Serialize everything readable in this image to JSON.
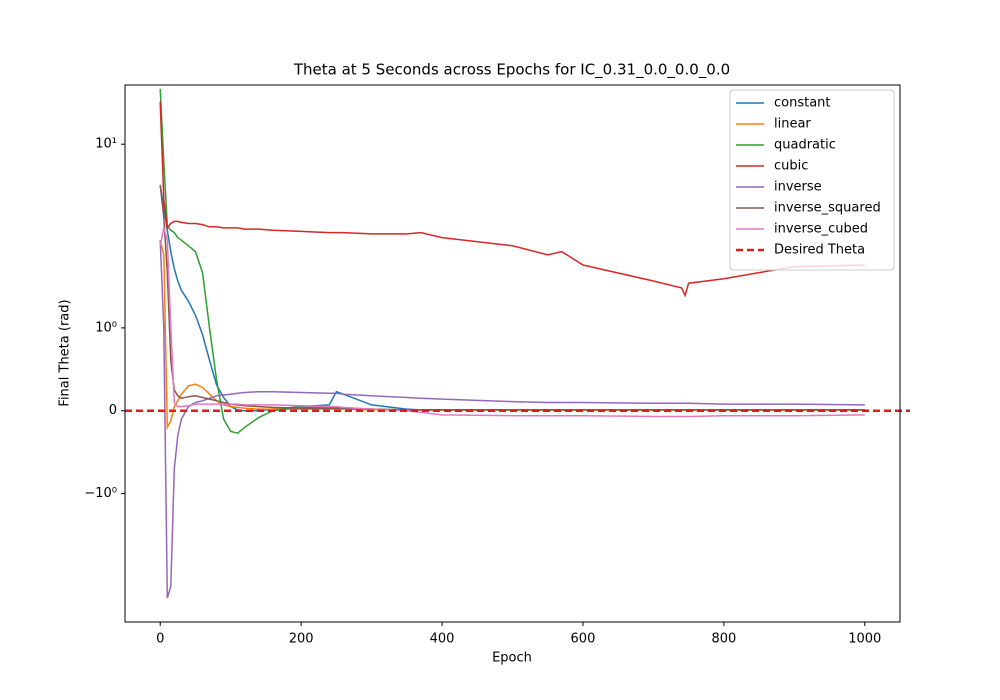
{
  "chart_data": {
    "type": "line",
    "title": "Theta at 5 Seconds across Epochs for IC_0.31_0.0_0.0_0.0",
    "x_label": "Epoch",
    "y_label": "Final Theta (rad)",
    "yscale": "symlog",
    "linthresh": 1,
    "xlim": [
      -50,
      1050
    ],
    "ylim": [
      -5,
      21
    ],
    "xticks": [
      0,
      200,
      400,
      600,
      800,
      1000
    ],
    "yticks": [
      {
        "value": -1,
        "label": "−10⁰"
      },
      0,
      {
        "value": 1,
        "label": "10⁰"
      },
      {
        "value": 10,
        "label": "10¹"
      }
    ],
    "legend": "upper right",
    "x": [
      0,
      5,
      10,
      15,
      20,
      25,
      30,
      40,
      50,
      60,
      70,
      80,
      90,
      100,
      110,
      120,
      140,
      160,
      200,
      240,
      250,
      260,
      300,
      350,
      370,
      400,
      500,
      550,
      570,
      600,
      700,
      740,
      745,
      750,
      800,
      850,
      900,
      1000
    ],
    "series": [
      {
        "name": "constant",
        "color": "#1f77b4",
        "values": [
          6,
          4.5,
          3.4,
          2.6,
          2.1,
          1.8,
          1.6,
          1.4,
          1.17,
          0.92,
          0.61,
          0.31,
          0.16,
          0.05,
          0.01,
          0,
          0,
          0.02,
          0.05,
          0.07,
          0.23,
          0.2,
          0.07,
          0.02,
          0.01,
          0.01,
          0.01,
          0.01,
          0.01,
          0.01,
          0.01,
          0.01,
          0.01,
          0.01,
          0.01,
          0.01,
          0.01,
          0.01
        ]
      },
      {
        "name": "linear",
        "color": "#ff7f0e",
        "values": [
          3,
          2.5,
          -0.2,
          -0.12,
          0.05,
          0.12,
          0.2,
          0.3,
          0.32,
          0.28,
          0.2,
          0.12,
          0.07,
          0.05,
          0.04,
          0.03,
          0.02,
          0.02,
          0.02,
          0.02,
          0.02,
          0.02,
          0.01,
          0.01,
          0.01,
          0.01,
          0.01,
          0.01,
          0.01,
          0.01,
          0.01,
          0.01,
          0.01,
          0.01,
          0.01,
          0.01,
          0.01,
          0.01
        ]
      },
      {
        "name": "quadratic",
        "color": "#2ca02c",
        "values": [
          20,
          8,
          3.6,
          3.4,
          3.3,
          3.1,
          3.0,
          2.8,
          2.6,
          2.0,
          1.0,
          0.37,
          -0.1,
          -0.25,
          -0.27,
          -0.2,
          -0.08,
          0,
          0.05,
          0.04,
          0.04,
          0.03,
          0.02,
          0.01,
          0.01,
          0.01,
          0.01,
          0.01,
          0.01,
          0.01,
          0.01,
          0.01,
          0.01,
          0.01,
          0.01,
          0.01,
          0.01,
          0.01
        ]
      },
      {
        "name": "cubic",
        "color": "#d62728",
        "values": [
          17,
          5,
          3.5,
          3.7,
          3.8,
          3.8,
          3.75,
          3.7,
          3.7,
          3.65,
          3.55,
          3.55,
          3.5,
          3.5,
          3.5,
          3.45,
          3.45,
          3.4,
          3.35,
          3.3,
          3.3,
          3.3,
          3.25,
          3.25,
          3.3,
          3.1,
          2.8,
          2.5,
          2.6,
          2.2,
          1.8,
          1.65,
          1.5,
          1.75,
          1.85,
          2.0,
          2.15,
          2.2
        ]
      },
      {
        "name": "inverse",
        "color": "#9467bd",
        "values": [
          3,
          1,
          -3.7,
          -3.2,
          -0.7,
          -0.3,
          -0.1,
          0.05,
          0.1,
          0.12,
          0.15,
          0.18,
          0.19,
          0.2,
          0.21,
          0.22,
          0.23,
          0.23,
          0.22,
          0.21,
          0.21,
          0.2,
          0.18,
          0.16,
          0.15,
          0.14,
          0.11,
          0.1,
          0.1,
          0.1,
          0.09,
          0.09,
          0.09,
          0.09,
          0.08,
          0.08,
          0.08,
          0.07
        ]
      },
      {
        "name": "inverse_squared",
        "color": "#8c564b",
        "values": [
          6,
          4,
          2,
          0.6,
          0.25,
          0.18,
          0.15,
          0.17,
          0.18,
          0.16,
          0.14,
          0.12,
          0.1,
          0.08,
          0.07,
          0.06,
          0.05,
          0.04,
          0.03,
          0.03,
          0.03,
          0.03,
          0.02,
          0.01,
          0.01,
          0.01,
          0.01,
          0.01,
          0.01,
          0.01,
          0.01,
          0.01,
          0.01,
          0.01,
          0.01,
          0.01,
          0.01,
          0.01
        ]
      },
      {
        "name": "inverse_cubed",
        "color": "#e377c2",
        "values": [
          2.8,
          3.5,
          3.0,
          1.0,
          0.1,
          0.05,
          0.05,
          0.06,
          0.08,
          0.08,
          0.08,
          0.08,
          0.08,
          0.08,
          0.08,
          0.07,
          0.07,
          0.07,
          0.06,
          0.05,
          0.05,
          0.04,
          0.02,
          0,
          -0.02,
          -0.05,
          -0.06,
          -0.06,
          -0.06,
          -0.06,
          -0.07,
          -0.07,
          -0.07,
          -0.07,
          -0.06,
          -0.06,
          -0.06,
          -0.05
        ]
      }
    ],
    "hlines": [
      {
        "name": "Desired Theta",
        "value": 0,
        "color": "#e31a1c",
        "style": "dashed"
      }
    ]
  }
}
